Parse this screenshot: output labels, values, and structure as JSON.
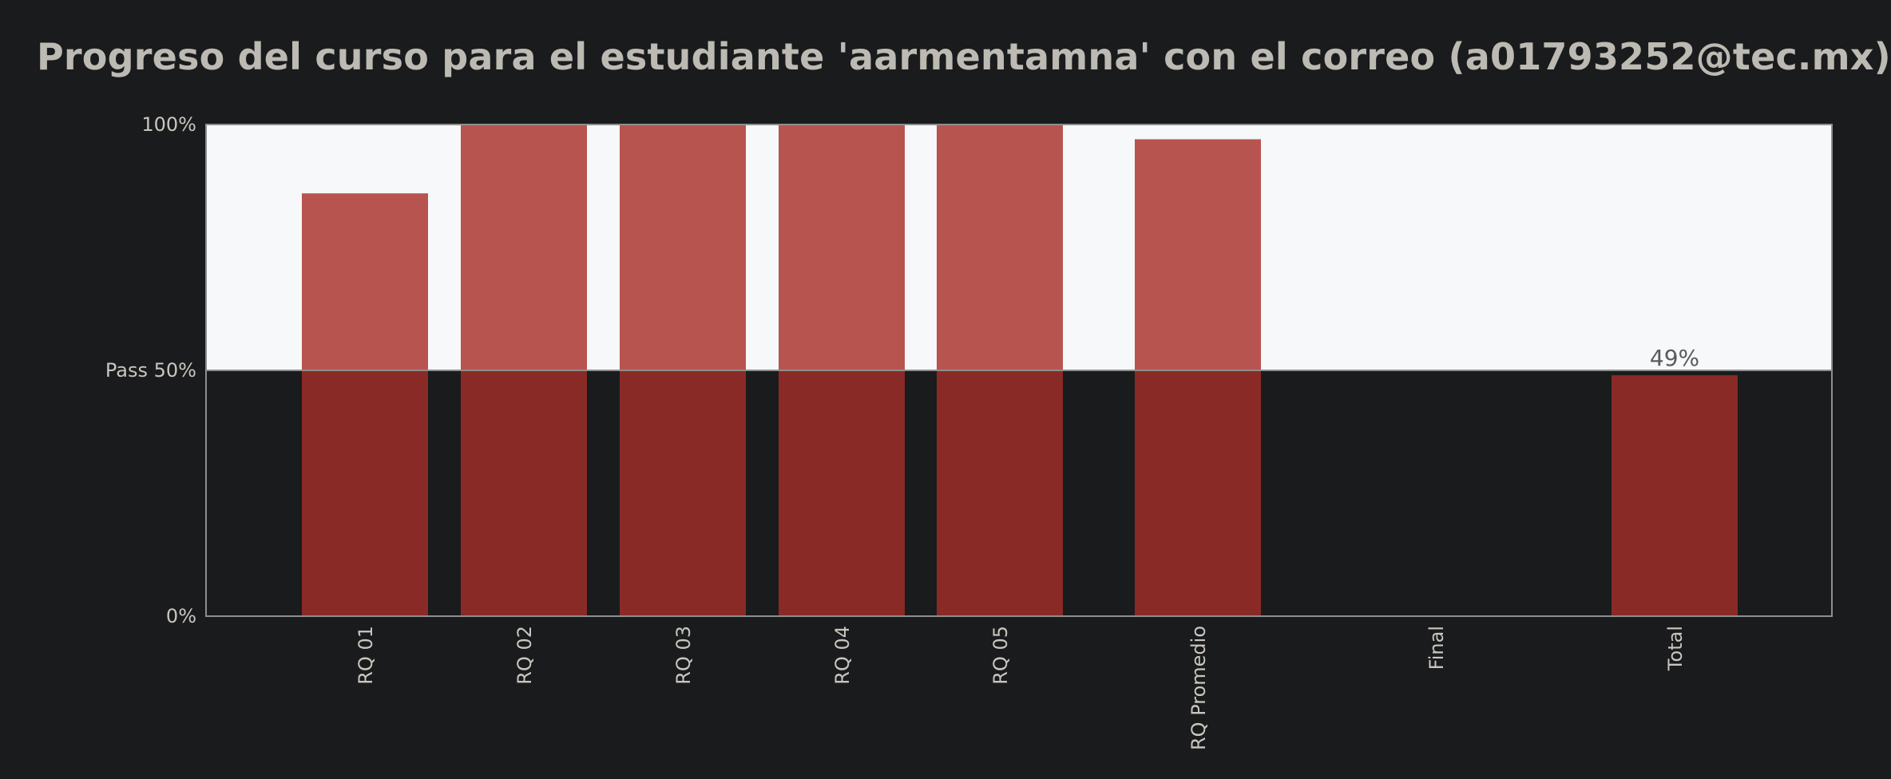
{
  "title": "Progreso del curso para el estudiante 'aarmentamna' con el correo (a01793252@tec.mx)",
  "colors": {
    "background": "#1a1b1d",
    "band_above_pass": "#f7f8fa",
    "bar_above_pass": "#b8544f",
    "bar_below_pass": "#8a2a27",
    "axis": "#8e8e8e",
    "text": "#c9c6bf",
    "data_label": "#5a5b5d"
  },
  "chart_data": {
    "type": "bar",
    "categories": [
      "RQ 01",
      "RQ 02",
      "RQ 03",
      "RQ 04",
      "RQ 05",
      "RQ Promedio",
      "Final",
      "Total"
    ],
    "values": [
      86,
      100,
      100,
      100,
      100,
      97,
      0,
      49
    ],
    "y_ticks": [
      {
        "value": 0,
        "label": "0%"
      },
      {
        "value": 50,
        "label": "Pass 50%"
      },
      {
        "value": 100,
        "label": "100%"
      }
    ],
    "data_labels": [
      {
        "category": "Total",
        "label": "49%"
      }
    ],
    "ylim": [
      0,
      100
    ],
    "pass_threshold": 50,
    "grid": false,
    "legend": "none"
  }
}
